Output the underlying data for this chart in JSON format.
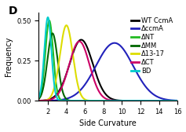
{
  "title": "D",
  "xlabel": "Side Curvature",
  "ylabel": "Frequency",
  "xlim": [
    1,
    16
  ],
  "ylim": [
    0,
    0.55
  ],
  "xticks": [
    2,
    4,
    6,
    8,
    10,
    12,
    14,
    16
  ],
  "yticks": [
    0.0,
    0.25,
    0.5
  ],
  "curves": [
    {
      "label": "WT CcmA",
      "color": "#000000",
      "mean": 5.6,
      "std": 1.25,
      "peak": 0.38
    },
    {
      "label": "ΔccmA",
      "color": "#2222bb",
      "mean": 9.2,
      "std": 2.0,
      "peak": 0.36
    },
    {
      "label": "ΔNT",
      "color": "#22bb22",
      "mean": 2.15,
      "std": 0.42,
      "peak": 0.5
    },
    {
      "label": "ΔMM",
      "color": "#006600",
      "mean": 2.5,
      "std": 0.55,
      "peak": 0.42
    },
    {
      "label": "Δ13-17",
      "color": "#dddd00",
      "mean": 4.0,
      "std": 0.7,
      "peak": 0.47
    },
    {
      "label": "ΔCT",
      "color": "#cc0066",
      "mean": 5.4,
      "std": 1.1,
      "peak": 0.37
    },
    {
      "label": "BD",
      "color": "#00cccc",
      "mean": 2.0,
      "std": 0.38,
      "peak": 0.52
    }
  ],
  "legend_fontsize": 6,
  "axis_fontsize": 7,
  "linewidth": 1.5
}
